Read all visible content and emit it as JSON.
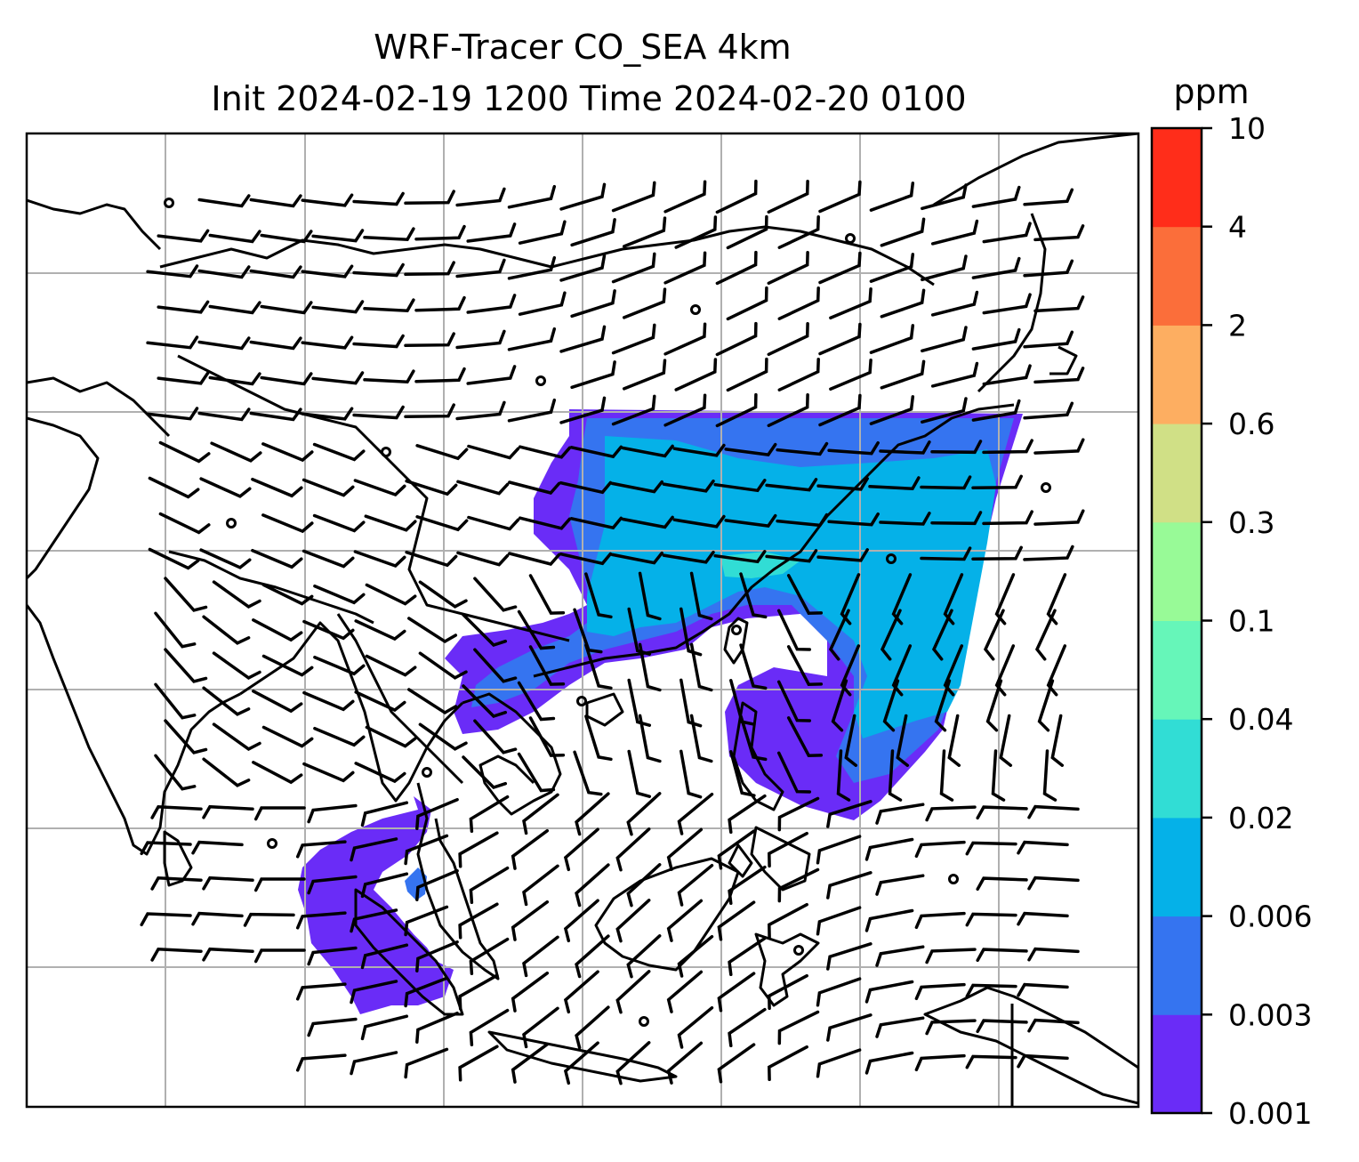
{
  "title": {
    "line1": "WRF-Tracer CO_SEA 4km",
    "line2": "Init 2024-02-19 1200 Time 2024-02-20 0100"
  },
  "colorbar": {
    "unit": "ppm",
    "levels": [
      "0.001",
      "0.003",
      "0.006",
      "0.02",
      "0.04",
      "0.1",
      "0.3",
      "0.6",
      "2",
      "4",
      "10"
    ],
    "colors": [
      "#6a2cf7",
      "#3574f0",
      "#05b1e8",
      "#31ddd5",
      "#66f6b9",
      "#98fa97",
      "#d0e086",
      "#fdae61",
      "#fb6e3a",
      "#ff2d1a"
    ]
  },
  "map": {
    "grid_color": "#b0b0b0",
    "coast_color": "#000000",
    "concentration_colors": {
      "very_low": "#6a2cf7",
      "low": "#3574f0",
      "mid": "#05b1e8",
      "high": "#31ddd5"
    }
  }
}
